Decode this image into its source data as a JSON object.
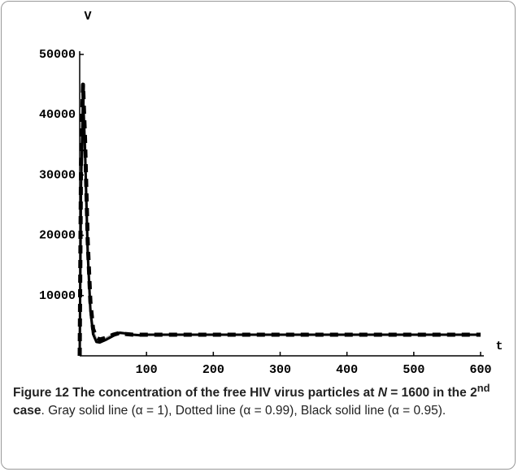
{
  "chart_data": {
    "type": "line",
    "y_label": "V",
    "x_label": "t",
    "x": [
      0,
      2,
      5,
      8,
      12,
      16,
      20,
      25,
      30,
      40,
      50,
      60,
      70,
      80,
      90,
      100,
      200,
      300,
      400,
      500,
      600
    ],
    "series": [
      {
        "color": "#9a9a9a",
        "dashed": false,
        "values": [
          0,
          30000,
          44000,
          35000,
          18000,
          8000,
          4000,
          2600,
          2500,
          2900,
          3500,
          3900,
          3700,
          3500,
          3450,
          3500,
          3500,
          3500,
          3500,
          3500,
          3500
        ]
      },
      {
        "color": "#000000",
        "dashed": true,
        "values": [
          0,
          32000,
          45000,
          36000,
          19000,
          9000,
          4500,
          3000,
          2700,
          3000,
          3500,
          3800,
          3600,
          3500,
          3500,
          3500,
          3500,
          3500,
          3500,
          3500,
          3500
        ]
      },
      {
        "color": "#000000",
        "dashed": false,
        "values": [
          0,
          28000,
          43000,
          34000,
          17000,
          7500,
          3600,
          2300,
          2200,
          2700,
          3300,
          3800,
          3700,
          3500,
          3400,
          3500,
          3500,
          3500,
          3500,
          3500,
          3500
        ]
      }
    ],
    "xlim": [
      0,
      600
    ],
    "xticks": [
      100,
      200,
      300,
      400,
      500,
      600
    ],
    "ylim": [
      0,
      50000
    ],
    "yticks": [
      10000,
      20000,
      30000,
      40000,
      50000
    ]
  },
  "caption": {
    "label": "Figure 12",
    "title_start": "The concentration of the free HIV virus particles at ",
    "title_var": "N",
    "title_mid": " = 1600 in the 2",
    "title_sup": "nd",
    "title_end": " case",
    "text": ". Gray solid line (α = 1), Dotted line (α = 0.99), Black solid line (α = 0.95)."
  }
}
